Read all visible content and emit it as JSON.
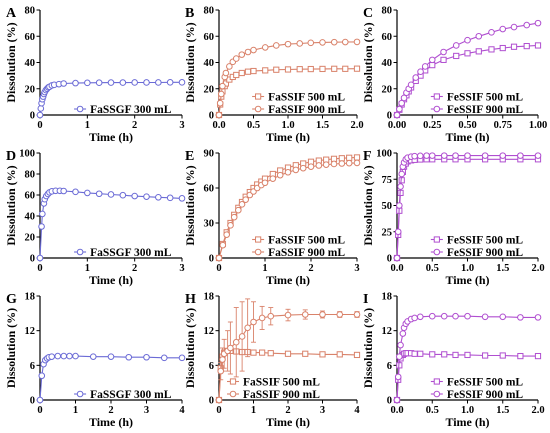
{
  "colors": {
    "fassgf": "#6b6bd6",
    "fassif": "#d9826a",
    "fessif": "#b04fd0",
    "axis": "#000000"
  },
  "chart_data": [
    {
      "type": "line",
      "panel": "A",
      "xlabel": "Time (h)",
      "ylabel": "Dissolution (%)",
      "xlim": [
        0,
        3
      ],
      "ylim": [
        0,
        80
      ],
      "xticks": [
        "0",
        "1",
        "2",
        "3"
      ],
      "yticks": [
        "0",
        "20",
        "40",
        "60",
        "80"
      ],
      "legend": "bottom-right",
      "series": [
        {
          "name": "FaSSGF 300 mL",
          "marker": "circle",
          "color": "fassgf",
          "x": [
            0,
            0.017,
            0.033,
            0.05,
            0.067,
            0.083,
            0.1,
            0.125,
            0.15,
            0.175,
            0.2,
            0.25,
            0.3,
            0.4,
            0.5,
            0.75,
            1.0,
            1.25,
            1.5,
            1.75,
            2.0,
            2.25,
            2.5,
            2.75,
            3.0
          ],
          "y": [
            0,
            5,
            9,
            12,
            14,
            16,
            17.5,
            19,
            20,
            21,
            21.5,
            22.5,
            23,
            23.5,
            24,
            24.3,
            24.5,
            24.6,
            24.7,
            24.7,
            24.8,
            24.8,
            24.8,
            24.9,
            24.9
          ]
        }
      ]
    },
    {
      "type": "line",
      "panel": "B",
      "xlabel": "Time (h)",
      "ylabel": "Dissolution (%)",
      "xlim": [
        0,
        2
      ],
      "ylim": [
        0,
        80
      ],
      "xticks": [
        "0.0",
        "0.5",
        "1.0",
        "1.5",
        "2.0"
      ],
      "yticks": [
        "0",
        "20",
        "40",
        "60",
        "80"
      ],
      "legend": "bottom-right",
      "series": [
        {
          "name": "FaSSIF 500 mL",
          "marker": "square",
          "color": "fassif",
          "x": [
            0,
            0.017,
            0.033,
            0.05,
            0.083,
            0.1,
            0.15,
            0.2,
            0.25,
            0.33,
            0.42,
            0.5,
            0.67,
            0.83,
            1.0,
            1.17,
            1.33,
            1.5,
            1.67,
            1.83,
            2.0
          ],
          "y": [
            0,
            8,
            14,
            18,
            22,
            24,
            27,
            29,
            30.5,
            32,
            33,
            33.5,
            34,
            34.5,
            34.7,
            34.9,
            35,
            35.1,
            35.2,
            35.2,
            35.3
          ]
        },
        {
          "name": "FaSSIF 900 mL",
          "marker": "circle",
          "color": "fassif",
          "x": [
            0,
            0.017,
            0.033,
            0.05,
            0.083,
            0.1,
            0.15,
            0.2,
            0.25,
            0.33,
            0.42,
            0.5,
            0.67,
            0.83,
            1.0,
            1.17,
            1.33,
            1.5,
            1.67,
            1.83,
            2.0
          ],
          "y": [
            0,
            9,
            16,
            22,
            29,
            32,
            37,
            40.5,
            43,
            46,
            48,
            49.5,
            51.5,
            53,
            54,
            54.5,
            55,
            55.3,
            55.5,
            55.6,
            55.7
          ]
        }
      ]
    },
    {
      "type": "line",
      "panel": "C",
      "xlabel": "Time (h)",
      "ylabel": "Dissolution (%)",
      "xlim": [
        0,
        1
      ],
      "ylim": [
        0,
        80
      ],
      "xticks": [
        "0.00",
        "0.25",
        "0.50",
        "0.75",
        "1.00"
      ],
      "yticks": [
        "0",
        "20",
        "40",
        "60",
        "80"
      ],
      "legend": "bottom-right",
      "series": [
        {
          "name": "FeSSIF 500 mL",
          "marker": "square",
          "color": "fessif",
          "x": [
            0,
            0.017,
            0.033,
            0.05,
            0.067,
            0.083,
            0.1,
            0.133,
            0.167,
            0.2,
            0.25,
            0.33,
            0.42,
            0.5,
            0.58,
            0.67,
            0.75,
            0.83,
            0.92,
            1.0
          ],
          "y": [
            0,
            4,
            8,
            12,
            15,
            18,
            21,
            26,
            30,
            34,
            38,
            42,
            45,
            47,
            48.5,
            50,
            51,
            52,
            52.5,
            53
          ]
        },
        {
          "name": "FeSSIF 900 mL",
          "marker": "circle",
          "color": "fessif",
          "x": [
            0,
            0.017,
            0.033,
            0.05,
            0.067,
            0.083,
            0.1,
            0.133,
            0.167,
            0.2,
            0.25,
            0.33,
            0.42,
            0.5,
            0.58,
            0.67,
            0.75,
            0.83,
            0.92,
            1.0
          ],
          "y": [
            0,
            4.5,
            9,
            13,
            17,
            20,
            23,
            28.5,
            33,
            37,
            42,
            48,
            53,
            57,
            60,
            63,
            65.5,
            67,
            68.5,
            70
          ]
        }
      ]
    },
    {
      "type": "line",
      "panel": "D",
      "xlabel": "Time (h)",
      "ylabel": "Dissolution (%)",
      "xlim": [
        0,
        3
      ],
      "ylim": [
        0,
        100
      ],
      "xticks": [
        "0",
        "1",
        "2",
        "3"
      ],
      "yticks": [
        "0",
        "20",
        "40",
        "60",
        "80",
        "100"
      ],
      "legend": "bottom-right",
      "series": [
        {
          "name": "FaSSGF 300 mL",
          "marker": "circle",
          "color": "fassgf",
          "x": [
            0,
            0.033,
            0.05,
            0.083,
            0.1,
            0.133,
            0.167,
            0.2,
            0.25,
            0.33,
            0.42,
            0.5,
            0.75,
            1.0,
            1.25,
            1.5,
            1.75,
            2.0,
            2.25,
            2.5,
            2.75,
            3.0
          ],
          "y": [
            0,
            30,
            42,
            52,
            56,
            59,
            61,
            62.5,
            63.5,
            64,
            64,
            63.8,
            63,
            62,
            61.2,
            60.5,
            59.8,
            59,
            58.4,
            57.8,
            57.3,
            56.8
          ]
        }
      ]
    },
    {
      "type": "line",
      "panel": "E",
      "xlabel": "Time (h)",
      "ylabel": "Dissolution (%)",
      "xlim": [
        0,
        3
      ],
      "ylim": [
        0,
        90
      ],
      "xticks": [
        "0",
        "1",
        "2",
        "3"
      ],
      "yticks": [
        "0",
        "30",
        "60",
        "90"
      ],
      "legend": "bottom-right",
      "series": [
        {
          "name": "FaSSIF 500 mL",
          "marker": "square",
          "color": "fassif",
          "x": [
            0,
            0.083,
            0.167,
            0.25,
            0.33,
            0.42,
            0.5,
            0.58,
            0.67,
            0.75,
            0.83,
            0.92,
            1.0,
            1.17,
            1.33,
            1.5,
            1.67,
            1.83,
            2.0,
            2.17,
            2.33,
            2.5,
            2.67,
            2.83,
            3.0
          ],
          "y": [
            0,
            12,
            22,
            30,
            37,
            43,
            48,
            52.5,
            56.5,
            60,
            63,
            65.5,
            68,
            72,
            75,
            77.5,
            79.5,
            81,
            82.5,
            83.5,
            84.3,
            85,
            85.5,
            85.9,
            86.2
          ]
        },
        {
          "name": "FaSSIF 900 mL",
          "marker": "circle",
          "color": "fassif",
          "x": [
            0,
            0.083,
            0.167,
            0.25,
            0.33,
            0.42,
            0.5,
            0.58,
            0.67,
            0.75,
            0.83,
            0.92,
            1.0,
            1.17,
            1.33,
            1.5,
            1.67,
            1.83,
            2.0,
            2.17,
            2.33,
            2.5,
            2.67,
            2.83,
            3.0
          ],
          "y": [
            0,
            11,
            20,
            28,
            35,
            41,
            46,
            50,
            54,
            57,
            60,
            62.5,
            64.5,
            68,
            71,
            73.5,
            75.5,
            77,
            78.3,
            79.3,
            80,
            80.6,
            81,
            81.3,
            81.5
          ]
        }
      ]
    },
    {
      "type": "line",
      "panel": "F",
      "xlabel": "Time (h)",
      "ylabel": "Dissolution (%)",
      "xlim": [
        0,
        2
      ],
      "ylim": [
        0,
        100
      ],
      "xticks": [
        "0.0",
        "0.5",
        "1.0",
        "1.5",
        "2.0"
      ],
      "yticks": [
        "0",
        "25",
        "50",
        "75",
        "100"
      ],
      "legend": "bottom-right",
      "series": [
        {
          "name": "FeSSIF 500 mL",
          "marker": "square",
          "color": "fessif",
          "x": [
            0,
            0.017,
            0.033,
            0.05,
            0.067,
            0.083,
            0.1,
            0.125,
            0.15,
            0.2,
            0.25,
            0.33,
            0.42,
            0.5,
            0.67,
            0.83,
            1.0,
            1.25,
            1.5,
            1.75,
            2.0
          ],
          "y": [
            0,
            22,
            45,
            62,
            74,
            82,
            87,
            90,
            92,
            93,
            93.5,
            93.8,
            94,
            94,
            94,
            94,
            94,
            94,
            94,
            94,
            94
          ]
        },
        {
          "name": "FeSSIF 900 mL",
          "marker": "circle",
          "color": "fessif",
          "x": [
            0,
            0.017,
            0.033,
            0.05,
            0.067,
            0.083,
            0.1,
            0.125,
            0.15,
            0.2,
            0.25,
            0.33,
            0.42,
            0.5,
            0.67,
            0.83,
            1.0,
            1.25,
            1.5,
            1.75,
            2.0
          ],
          "y": [
            0,
            25,
            50,
            68,
            80,
            87,
            91,
            94,
            95.5,
            96.5,
            97,
            97.3,
            97.5,
            97.5,
            97.5,
            97.5,
            97.5,
            97.5,
            97.5,
            97.5,
            97.5
          ]
        }
      ]
    },
    {
      "type": "line",
      "panel": "G",
      "xlabel": "Time (h)",
      "ylabel": "Dissolution (%)",
      "xlim": [
        0,
        4
      ],
      "ylim": [
        0,
        18
      ],
      "xticks": [
        "0",
        "1",
        "2",
        "3",
        "4"
      ],
      "yticks": [
        "0",
        "6",
        "12",
        "18"
      ],
      "legend": "bottom-right",
      "series": [
        {
          "name": "FaSSGF 300 mL",
          "marker": "circle",
          "color": "fassgf",
          "x": [
            0,
            0.05,
            0.1,
            0.15,
            0.2,
            0.25,
            0.33,
            0.5,
            0.67,
            0.83,
            1.0,
            1.5,
            2.0,
            2.5,
            3.0,
            3.5,
            4.0
          ],
          "y": [
            0,
            4.2,
            6.2,
            6.9,
            7.2,
            7.4,
            7.5,
            7.6,
            7.6,
            7.6,
            7.6,
            7.5,
            7.5,
            7.4,
            7.4,
            7.3,
            7.3
          ]
        }
      ]
    },
    {
      "type": "line",
      "panel": "H",
      "xlabel": "Time (h)",
      "ylabel": "Dissolution (%)",
      "xlim": [
        0,
        4
      ],
      "ylim": [
        0,
        18
      ],
      "xticks": [
        "0",
        "1",
        "2",
        "3",
        "4"
      ],
      "yticks": [
        "0",
        "6",
        "12",
        "18"
      ],
      "legend": "bottom-left",
      "series": [
        {
          "name": "FaSSIF 500 mL",
          "marker": "square",
          "color": "fassif",
          "x": [
            0,
            0.05,
            0.1,
            0.15,
            0.25,
            0.33,
            0.5,
            0.67,
            0.83,
            1.0,
            1.25,
            1.5,
            2.0,
            2.5,
            3.0,
            3.5,
            4.0
          ],
          "y": [
            0,
            5.5,
            7.5,
            8.2,
            8.5,
            8.5,
            8.4,
            8.3,
            8.3,
            8.2,
            8.2,
            8.1,
            8.0,
            8.0,
            7.9,
            7.9,
            7.8
          ]
        },
        {
          "name": "FaSSIF 900 mL",
          "marker": "circle",
          "color": "fassif",
          "x": [
            0,
            0.05,
            0.1,
            0.15,
            0.25,
            0.33,
            0.5,
            0.67,
            0.83,
            1.0,
            1.25,
            1.5,
            2.0,
            2.5,
            3.0,
            3.5,
            4.0
          ],
          "y": [
            0,
            5,
            7,
            8,
            8.5,
            9,
            10,
            11,
            12.5,
            13.5,
            14.2,
            14.5,
            14.7,
            14.8,
            14.8,
            14.8,
            14.8
          ],
          "err": [
            0,
            1.5,
            2,
            2.5,
            3.5,
            4.5,
            6,
            6,
            5,
            3.5,
            2,
            1.5,
            1,
            0.8,
            0.6,
            0.5,
            0.5
          ]
        }
      ]
    },
    {
      "type": "line",
      "panel": "I",
      "xlabel": "Time (h)",
      "ylabel": "Dissolution (%)",
      "xlim": [
        0,
        2
      ],
      "ylim": [
        0,
        18
      ],
      "xticks": [
        "0.0",
        "0.5",
        "1.0",
        "1.5",
        "2.0"
      ],
      "yticks": [
        "0",
        "6",
        "12",
        "18"
      ],
      "legend": "bottom-right",
      "series": [
        {
          "name": "FeSSIF 500 mL",
          "marker": "square",
          "color": "fessif",
          "x": [
            0,
            0.017,
            0.033,
            0.05,
            0.083,
            0.1,
            0.125,
            0.15,
            0.2,
            0.25,
            0.33,
            0.5,
            0.67,
            0.83,
            1.0,
            1.25,
            1.5,
            1.75,
            2.0
          ],
          "y": [
            0,
            3.5,
            6,
            7.2,
            7.8,
            8,
            8.1,
            8.1,
            8.1,
            8,
            8,
            7.9,
            7.9,
            7.8,
            7.8,
            7.7,
            7.7,
            7.6,
            7.6
          ]
        },
        {
          "name": "FeSSIF 900 mL",
          "marker": "circle",
          "color": "fessif",
          "x": [
            0,
            0.017,
            0.033,
            0.05,
            0.083,
            0.1,
            0.125,
            0.15,
            0.2,
            0.25,
            0.33,
            0.5,
            0.67,
            0.83,
            1.0,
            1.25,
            1.5,
            1.75,
            2.0
          ],
          "y": [
            0,
            4,
            7.5,
            9.5,
            11.5,
            12.5,
            13.2,
            13.6,
            14,
            14.2,
            14.4,
            14.5,
            14.5,
            14.5,
            14.5,
            14.4,
            14.4,
            14.3,
            14.3
          ]
        }
      ]
    }
  ]
}
